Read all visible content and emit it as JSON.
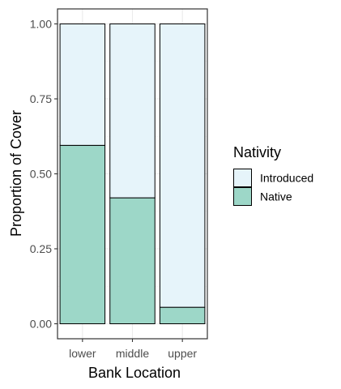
{
  "chart_data": {
    "type": "bar",
    "stacked": true,
    "categories": [
      "lower",
      "middle",
      "upper"
    ],
    "series": [
      {
        "name": "Introduced",
        "color": "#e6f4fa",
        "values": [
          0.405,
          0.58,
          0.945
        ]
      },
      {
        "name": "Native",
        "color": "#9dd7c8",
        "values": [
          0.595,
          0.42,
          0.055
        ]
      }
    ],
    "xlabel": "Bank Location",
    "ylabel": "Proportion of Cover",
    "ylim": [
      0,
      1
    ],
    "yticks": [
      {
        "value": 0,
        "label": "0.00"
      },
      {
        "value": 0.25,
        "label": "0.25"
      },
      {
        "value": 0.5,
        "label": "0.50"
      },
      {
        "value": 0.75,
        "label": "0.75"
      },
      {
        "value": 1,
        "label": "1.00"
      }
    ],
    "grid": true,
    "legend": {
      "title": "Nativity",
      "position": "right",
      "entries": [
        "Introduced",
        "Native"
      ]
    }
  }
}
